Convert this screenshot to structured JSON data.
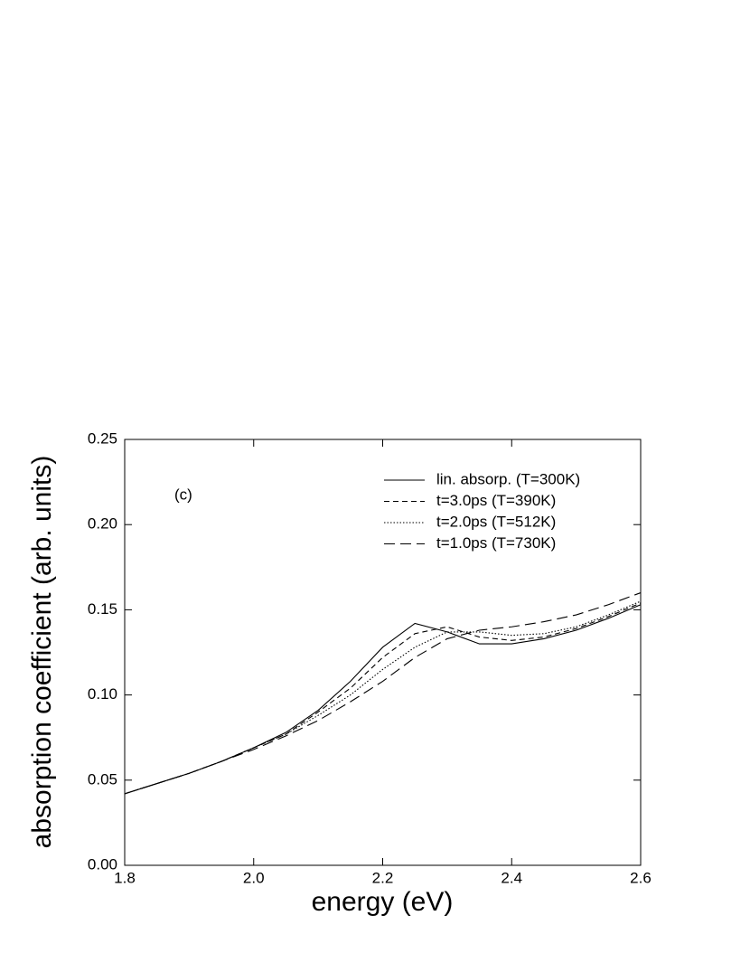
{
  "chart_data": {
    "type": "line",
    "annotation": "(c)",
    "xlabel": "energy (eV)",
    "ylabel": "absorption coefficient (arb. units)",
    "x": [
      1.8,
      1.85,
      1.9,
      1.95,
      2.0,
      2.05,
      2.1,
      2.15,
      2.2,
      2.25,
      2.3,
      2.35,
      2.4,
      2.45,
      2.5,
      2.55,
      2.6
    ],
    "series": [
      {
        "name": "lin. absorp. (T=300K)",
        "color": "#000000",
        "dash": "none",
        "values": [
          0.042,
          0.048,
          0.054,
          0.061,
          0.069,
          0.078,
          0.091,
          0.108,
          0.128,
          0.142,
          0.137,
          0.13,
          0.13,
          0.133,
          0.138,
          0.145,
          0.153
        ]
      },
      {
        "name": "t=3.0ps (T=390K)",
        "color": "#000000",
        "dash": "6,4",
        "values": [
          0.042,
          0.048,
          0.054,
          0.061,
          0.069,
          0.077,
          0.09,
          0.104,
          0.122,
          0.136,
          0.14,
          0.134,
          0.132,
          0.134,
          0.139,
          0.146,
          0.154
        ]
      },
      {
        "name": "t=2.0ps (T=512K)",
        "color": "#000000",
        "dash": "1.5,2",
        "values": [
          0.042,
          0.048,
          0.054,
          0.061,
          0.069,
          0.077,
          0.088,
          0.1,
          0.115,
          0.128,
          0.137,
          0.137,
          0.135,
          0.136,
          0.14,
          0.147,
          0.155
        ]
      },
      {
        "name": "t=1.0ps (T=730K)",
        "color": "#000000",
        "dash": "12,6",
        "values": [
          0.042,
          0.048,
          0.054,
          0.061,
          0.068,
          0.076,
          0.085,
          0.096,
          0.108,
          0.122,
          0.133,
          0.138,
          0.14,
          0.143,
          0.147,
          0.153,
          0.16
        ]
      }
    ],
    "xlim": [
      1.8,
      2.6
    ],
    "xticks": [
      1.8,
      {
        "value": 2,
        "label": "2.0"
      },
      2.2,
      2.4,
      2.6
    ],
    "ylim": [
      0,
      0.25
    ],
    "yticks": [
      {
        "value": 0,
        "label": "0.00"
      },
      0.05,
      {
        "value": 0.1,
        "label": "0.10"
      },
      0.15,
      {
        "value": 0.2,
        "label": "0.20"
      },
      0.25
    ],
    "legend": "upper right"
  }
}
